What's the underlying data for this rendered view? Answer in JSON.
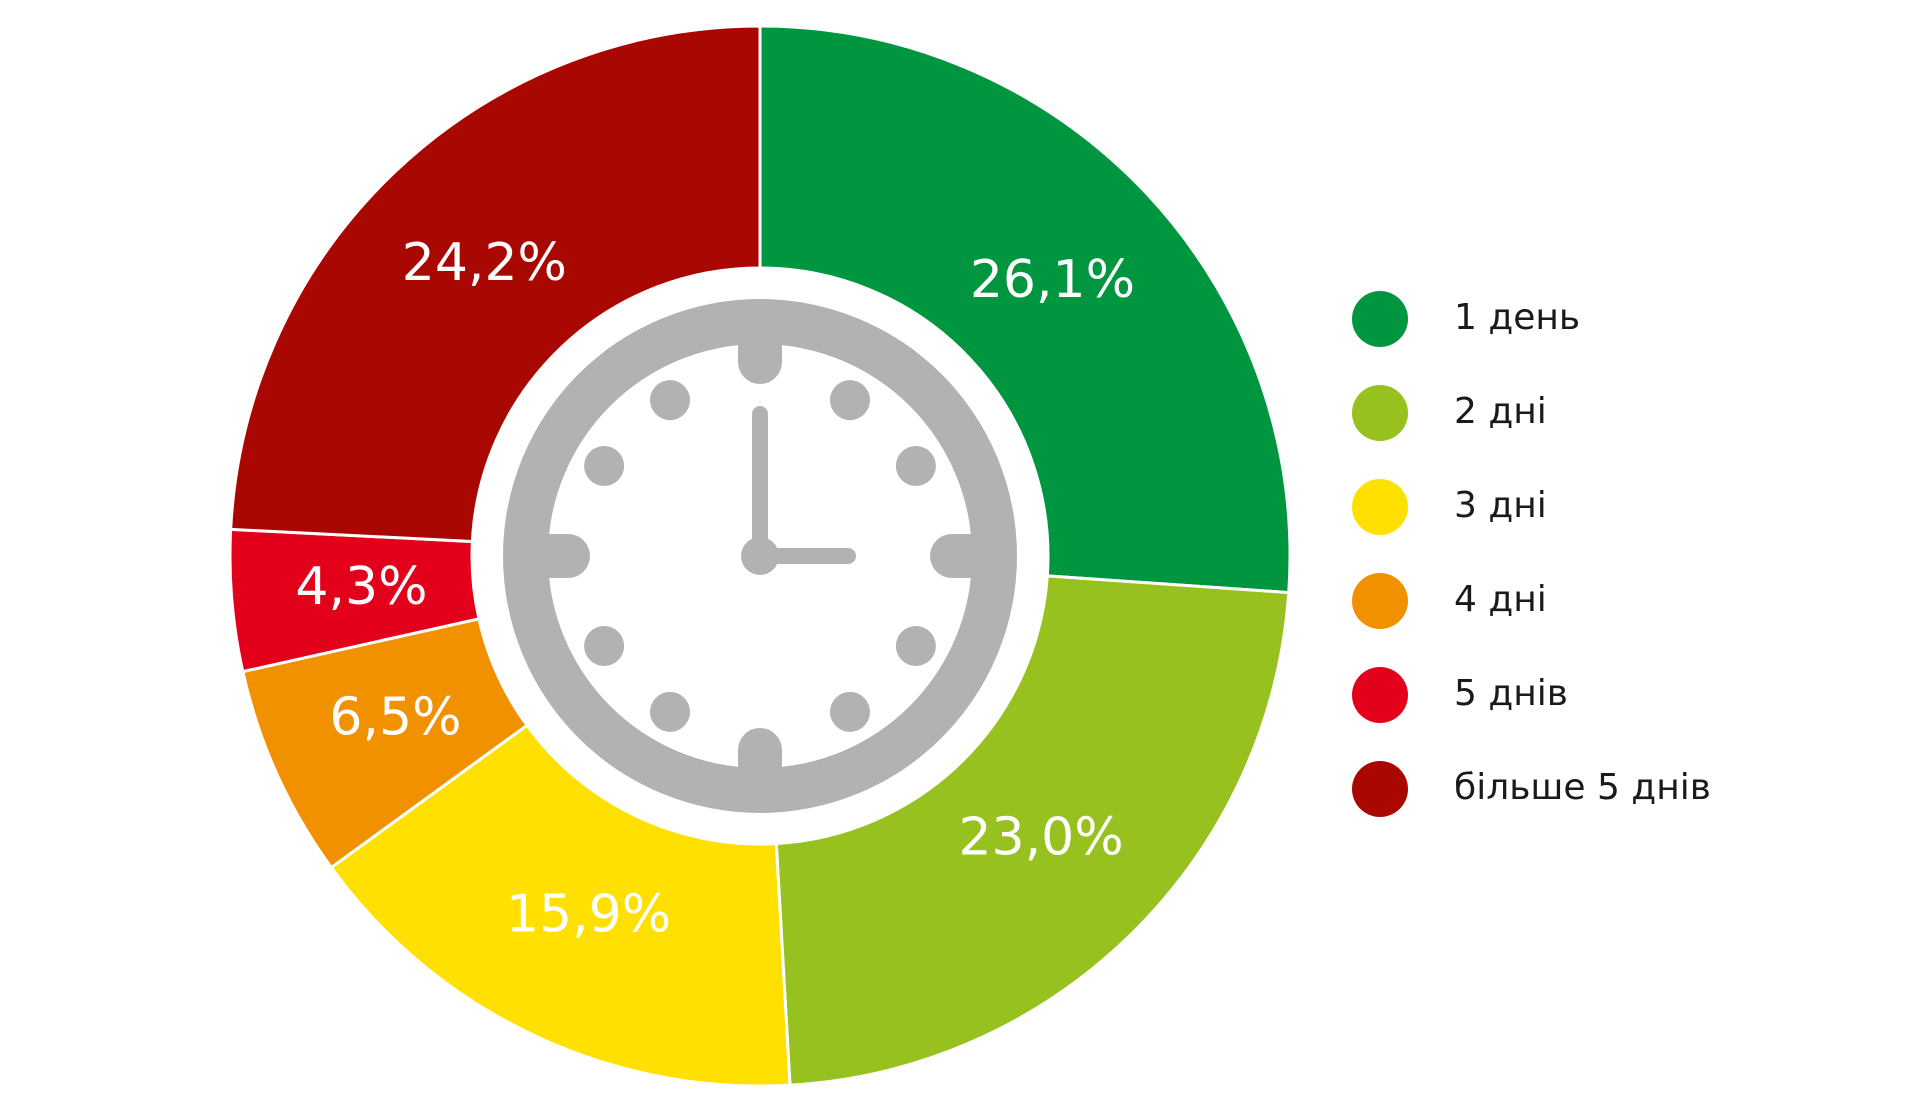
{
  "chart_data": {
    "type": "pie",
    "title": "",
    "unit": "%",
    "slices": [
      {
        "label": "1 день",
        "value": 26.1,
        "display": "26,1%",
        "color": "#00963f"
      },
      {
        "label": "2 дні",
        "value": 23.0,
        "display": "23,0%",
        "color": "#96c11f"
      },
      {
        "label": "3 дні",
        "value": 15.9,
        "display": "15,9%",
        "color": "#ffe000"
      },
      {
        "label": "4 дні",
        "value": 6.5,
        "display": "6,5%",
        "color": "#f29100"
      },
      {
        "label": "5 днів",
        "value": 4.3,
        "display": "4,3%",
        "color": "#e3001b"
      },
      {
        "label": "більше 5 днів",
        "value": 24.2,
        "display": "24,2%",
        "color": "#a90802"
      }
    ],
    "legend_position": "right",
    "center_icon": "clock-icon"
  }
}
